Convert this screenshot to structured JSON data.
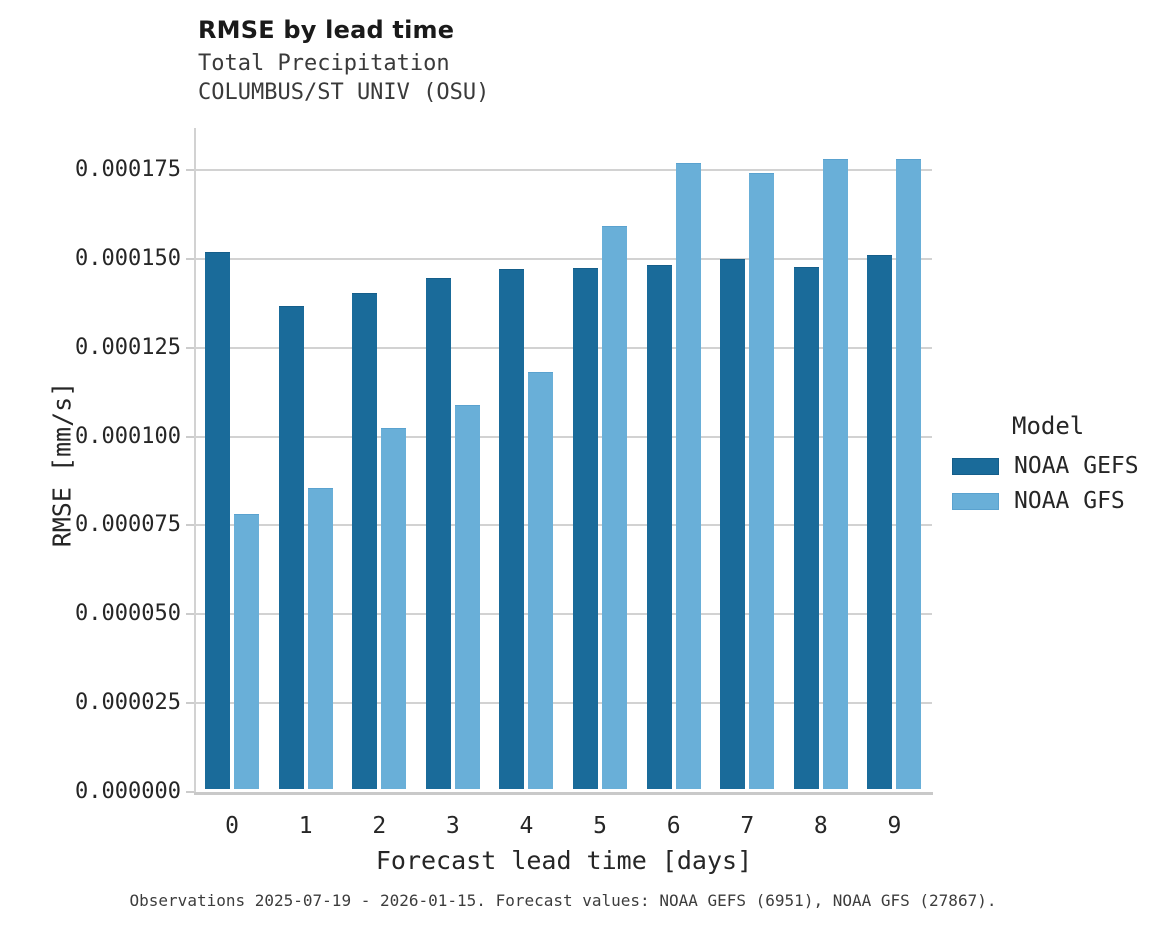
{
  "caption": "Observations 2025-07-19 - 2026-01-15. Forecast values: NOAA GEFS (6951), NOAA GFS (27867).",
  "colors": {
    "gefs_bar": "#1a6b9a",
    "gefs_edge": "#155e8a",
    "gfs_bar": "#69afd8",
    "gfs_edge": "#5aa2cf",
    "gridline": "#d2d2d2",
    "axis_text": "#262626"
  },
  "chart_data": {
    "type": "bar",
    "title": "RMSE by lead time",
    "subtitle": [
      "Total Precipitation",
      "COLUMBUS/ST UNIV (OSU)"
    ],
    "xlabel": "Forecast lead time [days]",
    "ylabel": "RMSE [mm/s]",
    "legend_title": "Model",
    "legend_position": "right",
    "grid": "horizontal",
    "categories": [
      "0",
      "1",
      "2",
      "3",
      "4",
      "5",
      "6",
      "7",
      "8",
      "9"
    ],
    "series": [
      {
        "name": "NOAA GEFS",
        "color": "#1a6b9a",
        "edge": "#155e8a",
        "values": [
          0.0001511,
          0.000136,
          0.0001395,
          0.0001438,
          0.0001462,
          0.0001466,
          0.0001475,
          0.0001492,
          0.0001468,
          0.0001502
        ]
      },
      {
        "name": "NOAA GFS",
        "color": "#69afd8",
        "edge": "#5aa2cf",
        "values": [
          7.73e-05,
          8.46e-05,
          0.0001016,
          0.000108,
          0.0001172,
          0.0001583,
          0.0001761,
          0.0001732,
          0.0001771,
          0.0001771
        ]
      }
    ],
    "ylim": [
      0,
      0.0001868
    ],
    "yticks": [
      0.0,
      2.5e-05,
      5e-05,
      7.5e-05,
      0.0001,
      0.000125,
      0.00015,
      0.000175
    ],
    "ytick_decimals": 6
  }
}
